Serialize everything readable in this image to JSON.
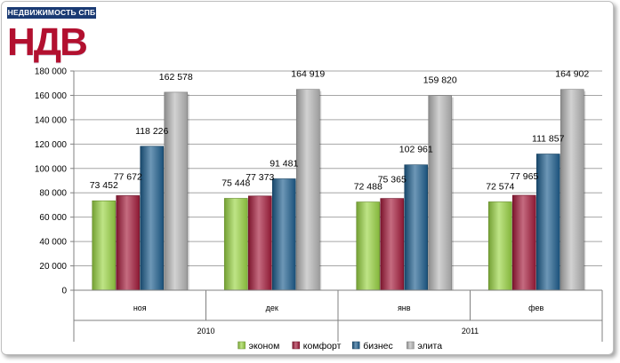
{
  "logo": {
    "banner_text": "НЕДВИЖИМОСТЬ СПБ",
    "mark_text": "НДВ"
  },
  "chart_data": {
    "type": "bar",
    "title": "",
    "xlabel": "",
    "ylabel": "",
    "ylim": [
      0,
      180000
    ],
    "ytick_step": 20000,
    "grid": true,
    "legend_position": "bottom",
    "categories": [
      "ноя",
      "дек",
      "янв",
      "фев"
    ],
    "category_groups": [
      {
        "label": "2010",
        "categories": [
          "ноя",
          "дек"
        ]
      },
      {
        "label": "2011",
        "categories": [
          "янв",
          "фев"
        ]
      }
    ],
    "series": [
      {
        "name": "эконом",
        "color": "#9bd545",
        "values": [
          73452,
          75448,
          72488,
          72574
        ]
      },
      {
        "name": "комфорт",
        "color": "#a51c3c",
        "values": [
          77672,
          77373,
          75365,
          77965
        ]
      },
      {
        "name": "бизнес",
        "color": "#1f5f8f",
        "values": [
          118226,
          91481,
          102961,
          111857
        ]
      },
      {
        "name": "элита",
        "color": "#b9b9b9",
        "values": [
          162578,
          164919,
          159820,
          164902
        ]
      }
    ]
  }
}
